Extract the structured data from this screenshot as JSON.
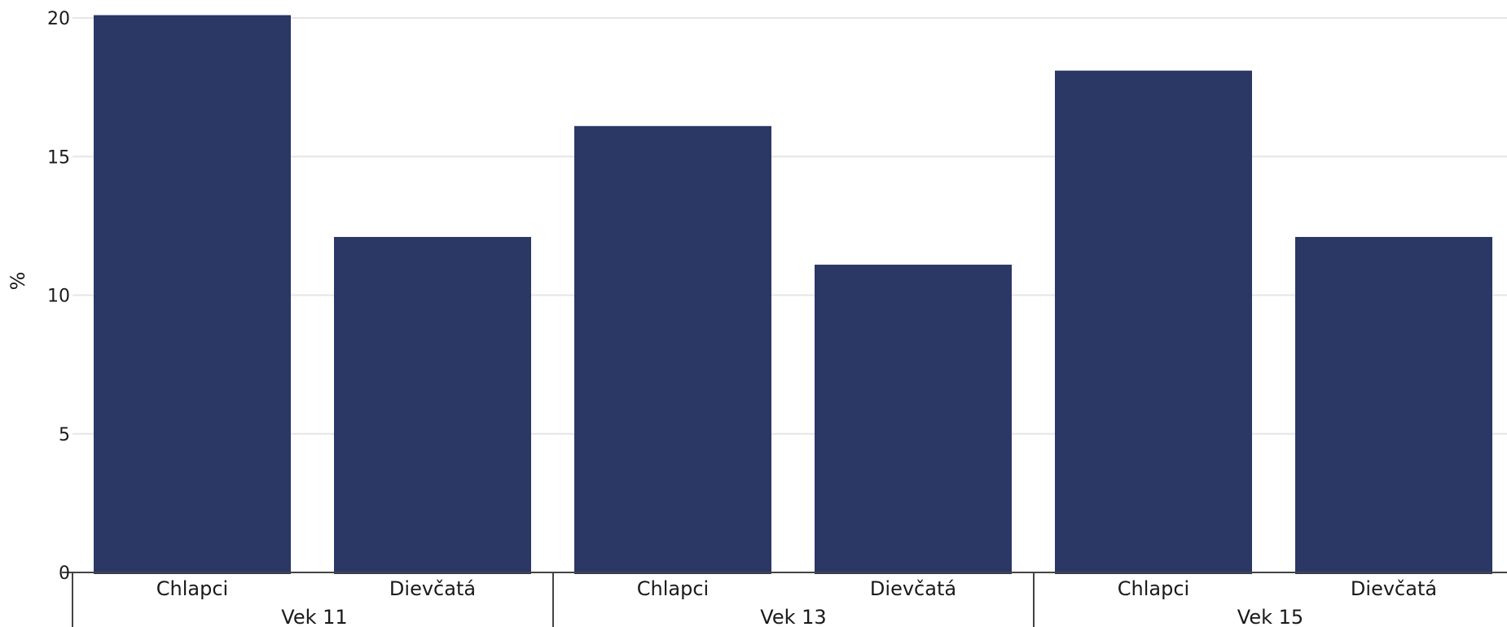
{
  "chart_data": {
    "type": "bar",
    "ylabel": "%",
    "ylim": [
      0,
      20
    ],
    "yticks": [
      "0",
      "5",
      "10",
      "15",
      "20"
    ],
    "bar_color": "#2b3765",
    "groups": [
      {
        "label": "Vek 11",
        "categories": [
          "Chlapci",
          "Dievčatá"
        ],
        "values": [
          20.1,
          12.1
        ]
      },
      {
        "label": "Vek 13",
        "categories": [
          "Chlapci",
          "Dievčatá"
        ],
        "values": [
          16.1,
          11.1
        ]
      },
      {
        "label": "Vek 15",
        "categories": [
          "Chlapci",
          "Dievčatá"
        ],
        "values": [
          18.1,
          12.1
        ]
      }
    ]
  }
}
